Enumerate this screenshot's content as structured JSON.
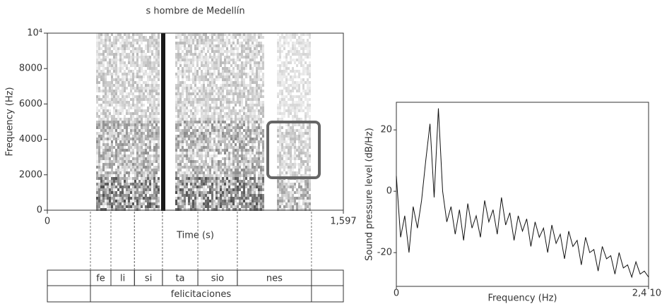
{
  "chart_data": [
    {
      "type": "spectrogram",
      "title": "s hombre de Medellín",
      "x_label": "Time (s)",
      "y_label": "Frequency (Hz)",
      "xlim": [
        0,
        1.597
      ],
      "xticks": [
        0,
        {
          "value": 1.597,
          "label": "1,597"
        }
      ],
      "ylim": [
        0,
        10000
      ],
      "yticks": [
        0,
        2000,
        4000,
        6000,
        8000,
        {
          "value": 10000,
          "label": "10⁴"
        }
      ],
      "tiers": [
        {
          "intervals": [
            {
              "label": "fe",
              "start": 0.2325,
              "end": 0.343
            },
            {
              "label": "li",
              "start": 0.343,
              "end": 0.47
            },
            {
              "label": "si",
              "start": 0.47,
              "end": 0.621
            },
            {
              "label": "ta",
              "start": 0.621,
              "end": 0.812
            },
            {
              "label": "sio",
              "start": 0.812,
              "end": 1.025
            },
            {
              "label": "nes",
              "start": 1.025,
              "end": 1.425
            }
          ]
        },
        {
          "intervals": [
            {
              "label": "felicitaciones",
              "start": 0.2325,
              "end": 1.425
            }
          ]
        }
      ]
    },
    {
      "type": "line",
      "x_label": "Frequency (Hz)",
      "y_label": "Sound pressure level (dB/Hz)",
      "xlim": [
        0,
        24000
      ],
      "xticks": [
        0,
        {
          "value": 24000,
          "label": "2,4 10⁴"
        }
      ],
      "ylim": [
        -31,
        29
      ],
      "yticks": [
        -20,
        0,
        20
      ],
      "series": [
        {
          "color": "#111111",
          "x": [
            0,
            400,
            800,
            1200,
            1600,
            2000,
            2400,
            2800,
            3200,
            3600,
            4000,
            4400,
            4800,
            5200,
            5600,
            6000,
            6400,
            6800,
            7200,
            7600,
            8000,
            8400,
            8800,
            9200,
            9600,
            10000,
            10400,
            10800,
            11200,
            11600,
            12000,
            12400,
            12800,
            13200,
            13600,
            14000,
            14400,
            14800,
            15200,
            15600,
            16000,
            16400,
            16800,
            17200,
            17600,
            18000,
            18400,
            18800,
            19200,
            19600,
            20000,
            20400,
            20800,
            21200,
            21600,
            22000,
            22400,
            22800,
            23200,
            23600,
            24000
          ],
          "values": [
            5,
            -15,
            -8,
            -20,
            -5,
            -12,
            -3,
            10,
            22,
            -2,
            27,
            0,
            -10,
            -5,
            -14,
            -6,
            -16,
            -4,
            -12,
            -8,
            -15,
            -3,
            -10,
            -6,
            -14,
            -2,
            -11,
            -7,
            -16,
            -8,
            -13,
            -9,
            -18,
            -10,
            -15,
            -12,
            -20,
            -11,
            -17,
            -14,
            -22,
            -13,
            -18,
            -16,
            -24,
            -15,
            -20,
            -19,
            -26,
            -18,
            -22,
            -21,
            -27,
            -20,
            -25,
            -24,
            -28,
            -23,
            -27,
            -26,
            -28
          ]
        }
      ]
    }
  ]
}
